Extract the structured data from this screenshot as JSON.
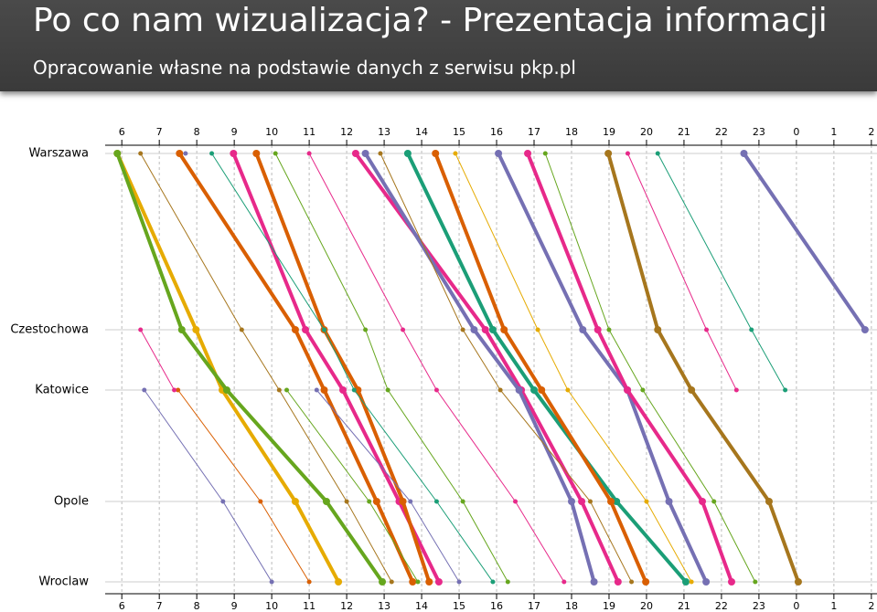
{
  "header": {
    "title": "Po co nam wizualizacja? - Prezentacja informacji",
    "subtitle": "Opracowanie własne na podstawie danych z serwisu pkp.pl"
  },
  "chart_data": {
    "type": "train-graph",
    "stations": [
      "Warszawa",
      "Czestochowa",
      "Katowice",
      "Opole",
      "Wroclaw"
    ],
    "xlim": [
      5.8,
      26.15
    ],
    "xticks": [
      6,
      7,
      8,
      9,
      10,
      11,
      12,
      13,
      14,
      15,
      16,
      17,
      18,
      19,
      20,
      21,
      22,
      23,
      {
        "value": 24,
        "label": "0"
      },
      {
        "value": 25,
        "label": "1"
      },
      {
        "value": 26,
        "label": "2"
      }
    ],
    "grid": true,
    "series": [
      {
        "color": "#e6ab02",
        "thick": true,
        "values": [
          5.88,
          7.98,
          8.68,
          10.63,
          11.78
        ]
      },
      {
        "color": "#66a61e",
        "thick": true,
        "values": [
          5.88,
          7.6,
          8.8,
          11.46,
          12.95
        ]
      },
      {
        "color": "#d95f02",
        "thick": true,
        "values": [
          7.54,
          10.63,
          11.4,
          12.8,
          13.76
        ]
      },
      {
        "color": "#e7298a",
        "thick": true,
        "values": [
          8.98,
          10.9,
          11.9,
          13.4,
          14.46
        ]
      },
      {
        "color": "#d95f02",
        "thick": true,
        "values": [
          9.59,
          11.4,
          12.3,
          13.5,
          14.2
        ]
      },
      {
        "color": "#e7298a",
        "thick": true,
        "values": [
          12.24,
          15.7,
          16.66,
          18.27,
          19.24
        ]
      },
      {
        "color": "#7570b3",
        "thick": true,
        "values": [
          12.5,
          15.4,
          16.6,
          18.0,
          18.6
        ]
      },
      {
        "color": "#1b9e77",
        "thick": true,
        "values": [
          13.63,
          15.9,
          17.0,
          19.2,
          21.05
        ]
      },
      {
        "color": "#d95f02",
        "thick": true,
        "values": [
          14.37,
          16.2,
          17.2,
          19.05,
          19.98
        ]
      },
      {
        "color": "#7570b3",
        "thick": true,
        "values": [
          16.05,
          18.3,
          19.49,
          20.6,
          21.59
        ]
      },
      {
        "color": "#e7298a",
        "thick": true,
        "values": [
          16.83,
          18.7,
          19.49,
          21.49,
          22.27
        ]
      },
      {
        "color": "#a6761d",
        "thick": true,
        "values": [
          18.98,
          20.3,
          21.2,
          23.27,
          24.05
        ]
      },
      {
        "color": "#7570b3",
        "thick": true,
        "values": [
          22.6,
          25.83,
          null,
          null,
          null
        ]
      },
      {
        "color": "#a6761d",
        "thick": false,
        "values": [
          6.5,
          9.2,
          10.2,
          12.0,
          13.2
        ]
      },
      {
        "color": "#7570b3",
        "thick": false,
        "values": [
          7.7,
          null,
          11.2,
          13.7,
          15.0
        ]
      },
      {
        "color": "#1b9e77",
        "thick": false,
        "values": [
          8.4,
          11.4,
          12.2,
          14.4,
          15.9
        ]
      },
      {
        "color": "#66a61e",
        "thick": false,
        "values": [
          10.1,
          12.5,
          13.1,
          15.1,
          16.3
        ]
      },
      {
        "color": "#e7298a",
        "thick": false,
        "values": [
          11.0,
          13.5,
          14.4,
          16.5,
          17.8
        ]
      },
      {
        "color": "#a6761d",
        "thick": false,
        "values": [
          12.9,
          15.1,
          16.1,
          18.5,
          19.6
        ]
      },
      {
        "color": "#e6ab02",
        "thick": false,
        "values": [
          14.9,
          17.1,
          17.9,
          20.0,
          21.2
        ]
      },
      {
        "color": "#66a61e",
        "thick": false,
        "values": [
          17.3,
          19.0,
          19.9,
          21.8,
          22.9
        ]
      },
      {
        "color": "#1b9e77",
        "thick": false,
        "values": [
          20.3,
          22.8,
          23.7,
          null,
          null
        ]
      },
      {
        "color": "#e7298a",
        "thick": false,
        "values": [
          19.5,
          21.6,
          22.4,
          null,
          null
        ]
      },
      {
        "color": "#7570b3",
        "thick": false,
        "values": [
          null,
          null,
          6.6,
          8.7,
          10.0
        ]
      },
      {
        "color": "#d95f02",
        "thick": false,
        "values": [
          null,
          null,
          7.5,
          9.7,
          11.0
        ]
      },
      {
        "color": "#66a61e",
        "thick": false,
        "values": [
          null,
          null,
          10.4,
          12.6,
          13.9
        ]
      },
      {
        "color": "#e7298a",
        "thick": false,
        "values": [
          null,
          6.5,
          7.4,
          null,
          null
        ]
      }
    ]
  }
}
